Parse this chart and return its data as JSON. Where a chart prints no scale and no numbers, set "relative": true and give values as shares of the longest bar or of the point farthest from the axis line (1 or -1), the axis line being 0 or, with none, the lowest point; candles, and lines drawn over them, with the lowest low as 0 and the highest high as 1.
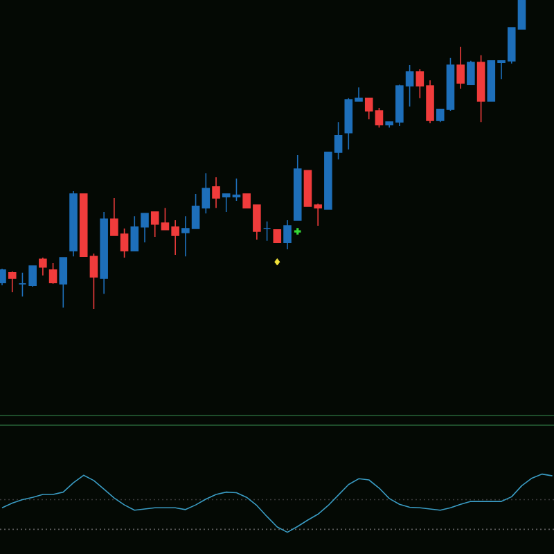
{
  "chart_data": [
    {
      "type": "candlestick",
      "relative": true,
      "categories": [
        null,
        null,
        null,
        null,
        null,
        null,
        null,
        null,
        null,
        null,
        null,
        null,
        null,
        null,
        null,
        null,
        null,
        null,
        null,
        null,
        null,
        null,
        null,
        null,
        null,
        null,
        null,
        null,
        null,
        null,
        null,
        null,
        null,
        null,
        null,
        null,
        null,
        null,
        null,
        null,
        null,
        null,
        null,
        null,
        null,
        null,
        null,
        null,
        null,
        null,
        null,
        null
      ],
      "ohlc": [
        [
          0.085,
          0.13,
          0.076,
          0.126
        ],
        [
          0.117,
          0.121,
          0.054,
          0.099
        ],
        [
          0.081,
          0.117,
          0.04,
          0.081
        ],
        [
          0.076,
          0.139,
          0.072,
          0.139
        ],
        [
          0.161,
          0.166,
          0.108,
          0.135
        ],
        [
          0.126,
          0.148,
          0.081,
          0.085
        ],
        [
          0.081,
          0.166,
          0.004,
          0.166
        ],
        [
          0.188,
          0.381,
          0.17,
          0.372
        ],
        [
          0.372,
          0.372,
          0.17,
          0.17
        ],
        [
          0.17,
          0.179,
          0,
          0.103
        ],
        [
          0.099,
          0.314,
          0.049,
          0.291
        ],
        [
          0.291,
          0.359,
          0.238,
          0.238
        ],
        [
          0.242,
          0.26,
          0.166,
          0.188
        ],
        [
          0.188,
          0.3,
          0.188,
          0.265
        ],
        [
          0.265,
          0.309,
          0.215,
          0.309
        ],
        [
          0.314,
          0.314,
          0.233,
          0.274
        ],
        [
          0.278,
          0.327,
          0.256,
          0.256
        ],
        [
          0.265,
          0.287,
          0.175,
          0.238
        ],
        [
          0.247,
          0.3,
          0.17,
          0.26
        ],
        [
          0.26,
          0.372,
          0.26,
          0.332
        ],
        [
          0.327,
          0.439,
          0.309,
          0.39
        ],
        [
          0.395,
          0.426,
          0.327,
          0.359
        ],
        [
          0.363,
          0.372,
          0.314,
          0.372
        ],
        [
          0.363,
          0.422,
          0.35,
          0.368
        ],
        [
          0.372,
          0.372,
          0.327,
          0.327
        ],
        [
          0.336,
          0.336,
          0.224,
          0.251
        ],
        [
          0.26,
          0.283,
          0.22,
          0.26
        ],
        [
          0.256,
          0.256,
          0.215,
          0.215
        ],
        [
          0.215,
          0.287,
          0.193,
          0.269
        ],
        [
          0.287,
          0.498,
          0.287,
          0.453
        ],
        [
          0.448,
          0.448,
          0.332,
          0.332
        ],
        [
          0.336,
          0.341,
          0.269,
          0.327
        ],
        [
          0.323,
          0.507,
          0.323,
          0.507
        ],
        [
          0.507,
          0.605,
          0.484,
          0.561
        ],
        [
          0.57,
          0.682,
          0.516,
          0.677
        ],
        [
          0.673,
          0.717,
          0.673,
          0.682
        ],
        [
          0.682,
          0.682,
          0.614,
          0.641
        ],
        [
          0.641,
          0.65,
          0.587,
          0.596
        ],
        [
          0.596,
          0.605,
          0.587,
          0.605
        ],
        [
          0.605,
          0.726,
          0.592,
          0.722
        ],
        [
          0.722,
          0.789,
          0.655,
          0.767
        ],
        [
          0.767,
          0.776,
          0.682,
          0.722
        ],
        [
          0.722,
          0.74,
          0.601,
          0.61
        ],
        [
          0.61,
          0.646,
          0.605,
          0.646
        ],
        [
          0.646,
          0.812,
          0.641,
          0.789
        ],
        [
          0.789,
          0.848,
          0.713,
          0.731
        ],
        [
          0.726,
          0.803,
          0.726,
          0.798
        ],
        [
          0.798,
          0.821,
          0.605,
          0.673
        ],
        [
          0.673,
          0.803,
          0.673,
          0.803
        ],
        [
          0.798,
          0.803,
          0.744,
          0.803
        ],
        [
          0.803,
          0.91,
          0.794,
          0.91
        ],
        [
          0.906,
          1,
          0.906,
          1
        ]
      ],
      "colors": [
        "#1e6fba",
        "#f03c3c",
        "#1e6fba",
        "#1e6fba",
        "#f03c3c",
        "#f03c3c",
        "#1e6fba",
        "#1e6fba",
        "#f03c3c",
        "#f03c3c",
        "#1e6fba",
        "#f03c3c",
        "#f03c3c",
        "#1e6fba",
        "#1e6fba",
        "#f03c3c",
        "#f03c3c",
        "#f03c3c",
        "#1e6fba",
        "#1e6fba",
        "#1e6fba",
        "#f03c3c",
        "#1e6fba",
        "#1e6fba",
        "#f03c3c",
        "#f03c3c",
        "#1e6fba",
        "#f03c3c",
        "#1e6fba",
        "#1e6fba",
        "#f03c3c",
        "#f03c3c",
        "#1e6fba",
        "#1e6fba",
        "#1e6fba",
        "#1e6fba",
        "#f03c3c",
        "#f03c3c",
        "#1e6fba",
        "#1e6fba",
        "#1e6fba",
        "#f03c3c",
        "#f03c3c",
        "#1e6fba",
        "#1e6fba",
        "#f03c3c",
        "#1e6fba",
        "#f03c3c",
        "#1e6fba",
        "#1e6fba",
        "#1e6fba",
        "#1e6fba"
      ],
      "series": [
        {
          "type": "scatter",
          "color": "#f2e33a",
          "marker": "diamond",
          "values": [
            null,
            null,
            null,
            null,
            null,
            null,
            null,
            null,
            null,
            null,
            null,
            null,
            null,
            null,
            null,
            null,
            null,
            null,
            null,
            null,
            null,
            null,
            null,
            null,
            null,
            null,
            null,
            0.152,
            null,
            null,
            null,
            null,
            null,
            null,
            null,
            null,
            null,
            null,
            null,
            null,
            null,
            null,
            null,
            null,
            null,
            null,
            null,
            null,
            null,
            null,
            null,
            null
          ]
        },
        {
          "type": "scatter",
          "color": "#36d936",
          "marker": "cross",
          "values": [
            null,
            null,
            null,
            null,
            null,
            null,
            null,
            null,
            null,
            null,
            null,
            null,
            null,
            null,
            null,
            null,
            null,
            null,
            null,
            null,
            null,
            null,
            null,
            null,
            null,
            null,
            null,
            null,
            null,
            0.251,
            null,
            null,
            null,
            null,
            null,
            null,
            null,
            null,
            null,
            null,
            null,
            null,
            null,
            null,
            null,
            null,
            null,
            null,
            null,
            null,
            null,
            null
          ]
        }
      ]
    },
    {
      "type": "line",
      "relative": true,
      "categories": [
        null,
        null,
        null,
        null,
        null,
        null,
        null,
        null,
        null,
        null,
        null,
        null,
        null,
        null,
        null,
        null,
        null,
        null,
        null,
        null,
        null,
        null,
        null,
        null,
        null,
        null,
        null,
        null,
        null,
        null,
        null,
        null,
        null,
        null,
        null,
        null,
        null,
        null,
        null,
        null,
        null,
        null,
        null,
        null,
        null,
        null,
        null,
        null,
        null,
        null,
        null,
        null,
        null,
        null,
        null
      ],
      "series": [
        {
          "color": "#3a9cc4",
          "values": [
            0.42,
            0.5,
            0.56,
            0.6,
            0.65,
            0.65,
            0.69,
            0.85,
            0.98,
            0.89,
            0.74,
            0.59,
            0.47,
            0.38,
            0.4,
            0.42,
            0.42,
            0.42,
            0.39,
            0.47,
            0.57,
            0.65,
            0.69,
            0.68,
            0.6,
            0.46,
            0.27,
            0.09,
            0,
            0.1,
            0.21,
            0.31,
            0.46,
            0.64,
            0.82,
            0.92,
            0.9,
            0.76,
            0.58,
            0.48,
            0.43,
            0.42,
            0.4,
            0.38,
            0.42,
            0.48,
            0.53,
            0.53,
            0.53,
            0.53,
            0.61,
            0.8,
            0.93,
            1,
            0.97
          ]
        }
      ],
      "ref_lines": [
        {
          "axis": "y",
          "value": 0.56,
          "color": "#3c3c3c",
          "line_style": "dotted"
        },
        {
          "axis": "y",
          "value": 0.05,
          "color": "#5e5e5e",
          "line_style": "dotted"
        }
      ]
    }
  ]
}
